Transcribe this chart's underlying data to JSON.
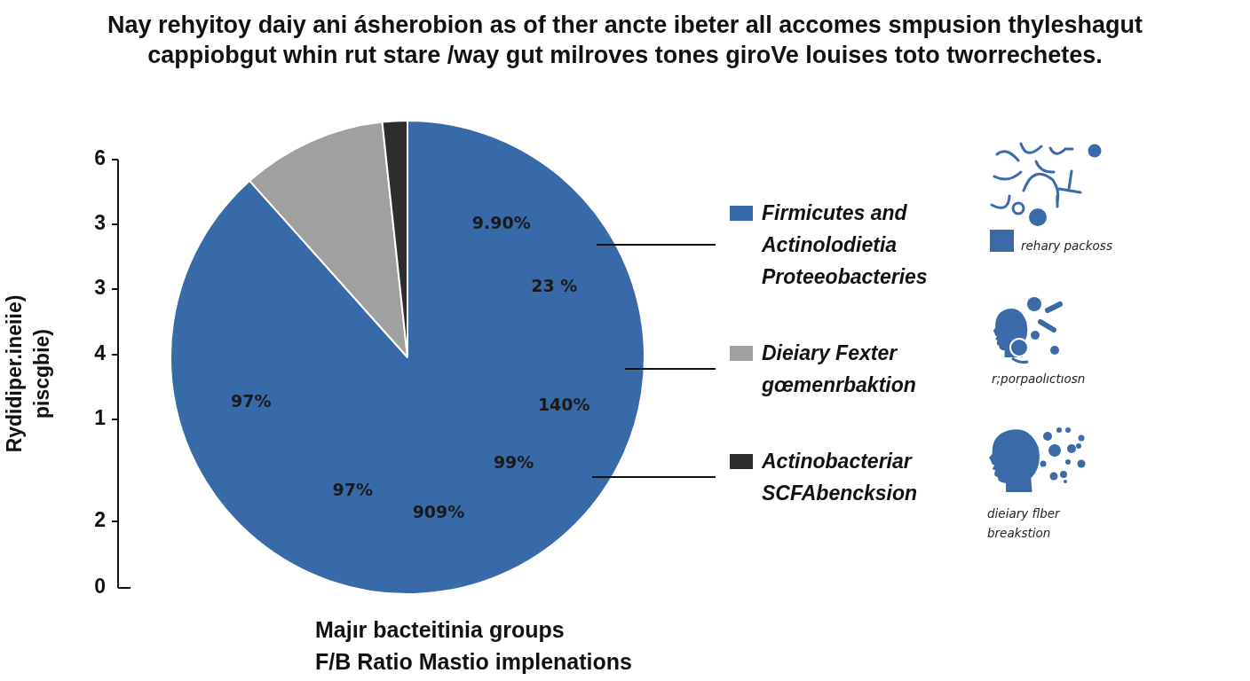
{
  "chart_data": {
    "type": "pie",
    "title": "Nay rehyitoy daiy ani ásherobion as of ther ancte ibeter all accomes smpusion thyleshagut cappiobgut whin rut stare /way gut milroves tones giroVe louises toto tworrechetes.",
    "xlabel": "Majır bacteitinia groups",
    "ylabel": "Rydidiper.ineiie) piscgbie)",
    "categories": [
      "Firmicutes and Actinolodietia Proteeobacteries",
      "Dieiary Fexter gœmenrbaktion",
      "Actinobacteriar SCFAbencksion"
    ],
    "values": [
      88.4,
      9.9,
      1.7
    ],
    "colors": [
      "#3869a8",
      "#a0a0a0",
      "#2b2d2e"
    ],
    "legend": "right",
    "annotations": [
      "9.90%",
      "23 %",
      "140%",
      "97%",
      "99%",
      "97%",
      "909%",
      "6",
      "3",
      "3",
      "4",
      "1",
      "2",
      "0",
      "F/B Ratio Mastio implenations",
      "rehary packoss",
      "r;porpaolıctıosn",
      "dieiary flber breakstion"
    ]
  }
}
